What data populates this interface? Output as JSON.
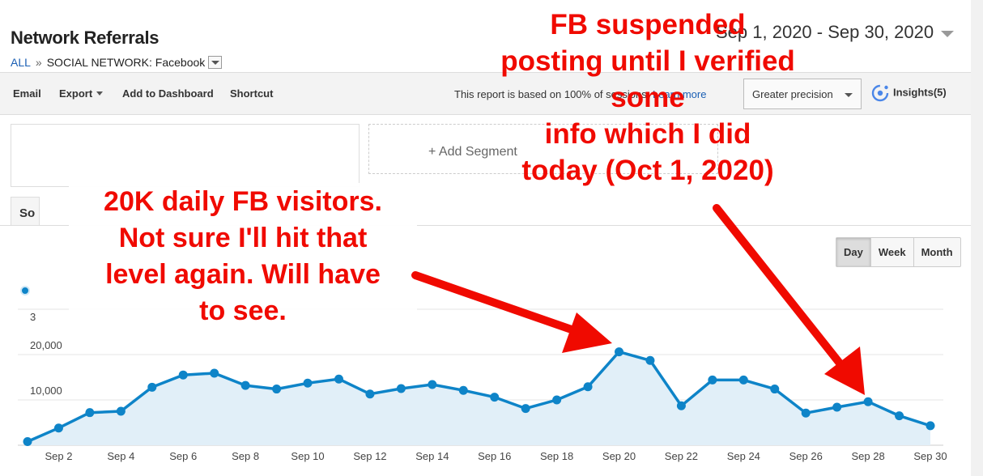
{
  "header": {
    "title": "Network Referrals",
    "breadcrumb_all": "ALL",
    "breadcrumb_separator": "»",
    "breadcrumb_label": "SOCIAL NETWORK:",
    "breadcrumb_value": "Facebook",
    "date_range": "Sep 1, 2020 - Sep 30, 2020"
  },
  "toolbar": {
    "email_label": "Email",
    "export_label": "Export",
    "add_dashboard_label": "Add to Dashboard",
    "shortcut_label": "Shortcut",
    "report_note": "This report is based on 100% of sessions.",
    "learn_more_label": "Learn more",
    "precision_label": "Greater precision",
    "insights_label": "Insights(5)"
  },
  "segments": {
    "add_segment_label": "+ Add Segment",
    "tab_label": "So"
  },
  "period_buttons": [
    "Day",
    "Week",
    "Month"
  ],
  "annotations": {
    "left_lines": [
      "20K daily FB visitors.",
      "Not sure I'll hit that",
      "level again. Will have",
      "to see."
    ],
    "right_lines": [
      "FB suspended",
      "posting until I verified",
      "some",
      "info which I did",
      "today (Oct 1, 2020)"
    ]
  },
  "chart_data": {
    "type": "area",
    "y_tick_values": [
      10000,
      20000
    ],
    "y_tick_labels": [
      "10,000",
      "20,000"
    ],
    "y_partial_label": "3",
    "x_tick_labels": [
      "Sep 2",
      "Sep 4",
      "Sep 6",
      "Sep 8",
      "Sep 10",
      "Sep 12",
      "Sep 14",
      "Sep 16",
      "Sep 18",
      "Sep 20",
      "Sep 22",
      "Sep 24",
      "Sep 26",
      "Sep 28",
      "Sep 30"
    ],
    "x": [
      "Sep 1",
      "Sep 2",
      "Sep 3",
      "Sep 4",
      "Sep 5",
      "Sep 6",
      "Sep 7",
      "Sep 8",
      "Sep 9",
      "Sep 10",
      "Sep 11",
      "Sep 12",
      "Sep 13",
      "Sep 14",
      "Sep 15",
      "Sep 16",
      "Sep 17",
      "Sep 18",
      "Sep 19",
      "Sep 20",
      "Sep 21",
      "Sep 22",
      "Sep 23",
      "Sep 24",
      "Sep 25",
      "Sep 26",
      "Sep 27",
      "Sep 28",
      "Sep 29",
      "Sep 30"
    ],
    "series": [
      {
        "values": [
          800,
          3800,
          7200,
          7500,
          12800,
          15500,
          15900,
          13200,
          12400,
          13700,
          14600,
          11300,
          12500,
          13400,
          12100,
          10600,
          8100,
          10000,
          12900,
          20600,
          18700,
          8700,
          14400,
          14400,
          12400,
          7100,
          8400,
          9600,
          6500,
          4300
        ]
      }
    ],
    "ylim": [
      0,
      30000
    ],
    "grid": true,
    "color": "#0e84c8",
    "fill_color": "#e1eff8"
  }
}
